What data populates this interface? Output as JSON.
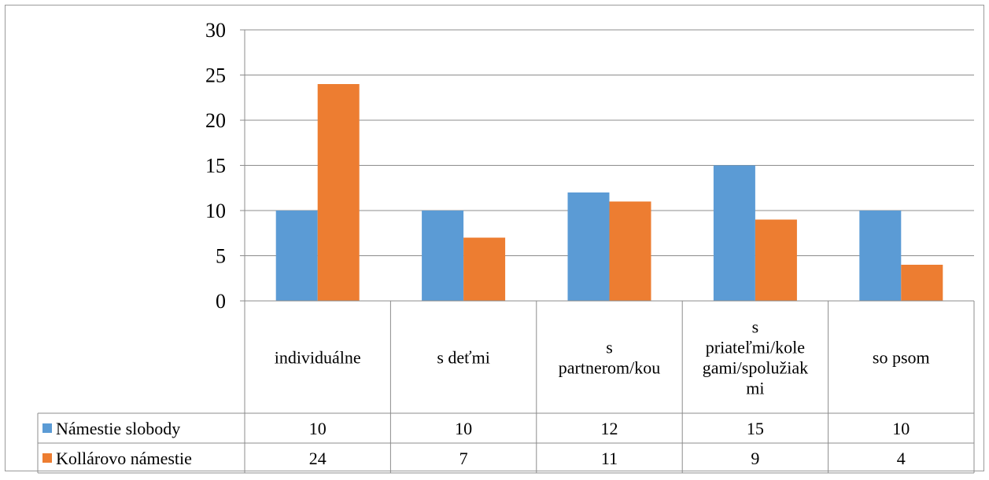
{
  "chart_data": {
    "type": "bar",
    "categories": [
      [
        "individuálne"
      ],
      [
        "s deťmi"
      ],
      [
        "s",
        "partnerom/kou"
      ],
      [
        "s",
        "priateľmi/kole",
        "gami/spolužiak",
        "mi"
      ],
      [
        "so psom"
      ]
    ],
    "series": [
      {
        "name": "Námestie slobody",
        "values": [
          10,
          10,
          12,
          15,
          10
        ],
        "value_labels": [
          "10",
          "10",
          "12",
          "15",
          "10"
        ],
        "color": "#5B9BD5"
      },
      {
        "name": "Kollárovo námestie",
        "values": [
          24,
          7,
          11,
          9,
          4
        ],
        "value_labels": [
          "24",
          "7",
          "11",
          "9",
          "4"
        ],
        "color": "#ED7D31"
      }
    ],
    "ylim": [
      0,
      30
    ],
    "yticks": [
      0,
      5,
      10,
      15,
      20,
      25,
      30
    ],
    "ytick_labels": [
      "0",
      "5",
      "10",
      "15",
      "20",
      "25",
      "30"
    ],
    "grid": true,
    "legend": "data-table",
    "data_table": true
  }
}
